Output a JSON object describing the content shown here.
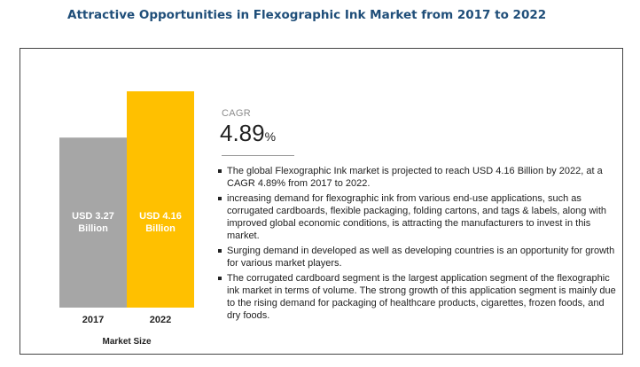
{
  "title": "Attractive Opportunities in Flexographic Ink Market from 2017 to 2022",
  "chart_data": {
    "type": "bar",
    "categories": [
      "2017",
      "2022"
    ],
    "values": [
      3.27,
      4.16
    ],
    "value_labels": [
      "USD 3.27 Billion",
      "USD 4.16 Billion"
    ],
    "colors": [
      "#a6a6a6",
      "#ffc000"
    ],
    "xlabel": "Market Size",
    "ylabel": "",
    "grid": false
  },
  "cagr": {
    "label": "CAGR",
    "value": "4.89",
    "unit": "%"
  },
  "bullets": [
    "The global Flexographic Ink market is projected to reach USD 4.16 Billion by 2022, at a CAGR 4.89% from 2017 to 2022.",
    "increasing demand for flexographic ink from various end-use applications, such as corrugated cardboards, flexible packaging, folding cartons, and tags & labels, along with improved global economic conditions, is attracting the manufacturers to invest in this market.",
    "Surging demand in developed as well as developing countries is an opportunity for growth for various market players.",
    "The corrugated cardboard segment is the largest application segment of the flexographic ink market in terms of volume. The strong growth of this application segment is mainly due to the rising demand for packaging of healthcare products, cigarettes, frozen foods, and dry foods."
  ]
}
